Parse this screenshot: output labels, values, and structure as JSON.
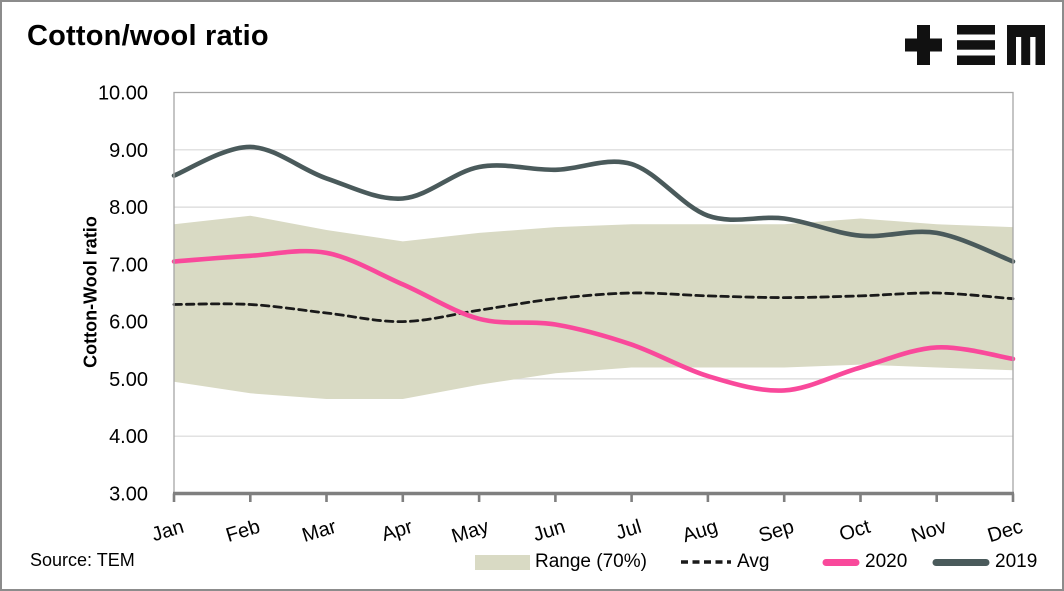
{
  "header": {
    "title": "Cotton/wool ratio",
    "logo_name": "TEM logo"
  },
  "footer": {
    "source": "Source: TEM"
  },
  "legend": {
    "items": [
      {
        "label": "Range (70%)"
      },
      {
        "label": "Avg"
      },
      {
        "label": "2020"
      },
      {
        "label": "2019"
      }
    ]
  },
  "chart_data": {
    "type": "line",
    "title": "Cotton/wool ratio",
    "xlabel": "",
    "ylabel": "Cotton-Wool ratio",
    "ylim": [
      3,
      10
    ],
    "grid": true,
    "legend_position": "bottom",
    "categories": [
      "Jan",
      "Feb",
      "Mar",
      "Apr",
      "May",
      "Jun",
      "Jul",
      "Aug",
      "Sep",
      "Oct",
      "Nov",
      "Dec"
    ],
    "y_ticks": [
      {
        "value": 10,
        "label": "10.00"
      },
      {
        "value": 9,
        "label": "9.00"
      },
      {
        "value": 8,
        "label": "8.00"
      },
      {
        "value": 7,
        "label": "7.00"
      },
      {
        "value": 6,
        "label": "6.00"
      },
      {
        "value": 5,
        "label": "5.00"
      },
      {
        "value": 4,
        "label": "4.00"
      },
      {
        "value": 3,
        "label": "3.00"
      }
    ],
    "series": [
      {
        "name": "Range (70%)",
        "kind": "band",
        "color": "#D9DAC4",
        "upper": [
          7.7,
          7.85,
          7.6,
          7.4,
          7.55,
          7.65,
          7.7,
          7.7,
          7.7,
          7.8,
          7.7,
          7.65
        ],
        "lower": [
          4.95,
          4.75,
          4.65,
          4.65,
          4.9,
          5.1,
          5.2,
          5.2,
          5.2,
          5.25,
          5.2,
          5.15
        ]
      },
      {
        "name": "Avg",
        "kind": "line",
        "style": "dashed",
        "color": "#1A1A1A",
        "values": [
          6.3,
          6.3,
          6.15,
          6.0,
          6.2,
          6.4,
          6.5,
          6.45,
          6.42,
          6.45,
          6.5,
          6.4
        ]
      },
      {
        "name": "2020",
        "kind": "line",
        "style": "solid",
        "color": "#F9499B",
        "values": [
          7.05,
          7.15,
          7.2,
          6.65,
          6.05,
          5.95,
          5.6,
          5.05,
          4.8,
          5.2,
          5.55,
          5.35
        ]
      },
      {
        "name": "2019",
        "kind": "line",
        "style": "solid",
        "color": "#4A5A5B",
        "values": [
          8.55,
          9.05,
          8.5,
          8.15,
          8.7,
          8.65,
          8.75,
          7.85,
          7.8,
          7.5,
          7.55,
          7.05
        ]
      }
    ]
  }
}
